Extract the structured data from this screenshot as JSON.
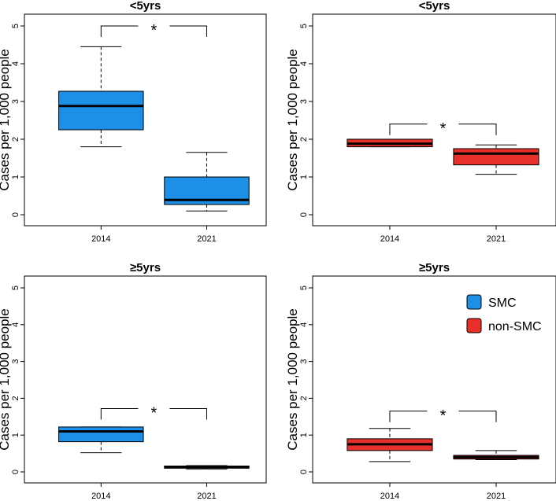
{
  "chart_data": [
    {
      "type": "box",
      "title": "<5yrs",
      "ylabel": "Cases per 1,000 people",
      "ylim": [
        0,
        5
      ],
      "yticks": [
        0,
        1,
        2,
        3,
        4,
        5
      ],
      "categories": [
        "2014",
        "2021"
      ],
      "group": "SMC",
      "color": "#1E8FE6",
      "boxes": [
        {
          "x": "2014",
          "whisker_low": 1.8,
          "q1": 2.25,
          "median": 2.88,
          "q3": 3.27,
          "whisker_high": 4.45
        },
        {
          "x": "2021",
          "whisker_low": 0.1,
          "q1": 0.27,
          "median": 0.39,
          "q3": 1.0,
          "whisker_high": 1.65
        }
      ],
      "significance": "*",
      "sig_y": 5.0
    },
    {
      "type": "box",
      "title": "<5yrs",
      "ylabel": "Cases per 1,000 people",
      "ylim": [
        0,
        5
      ],
      "yticks": [
        0,
        1,
        2,
        3,
        4,
        5
      ],
      "categories": [
        "2014",
        "2021"
      ],
      "group": "non-SMC",
      "color": "#E8302A",
      "boxes": [
        {
          "x": "2014",
          "whisker_low": 1.8,
          "q1": 1.8,
          "median": 1.88,
          "q3": 2.0,
          "whisker_high": 2.0
        },
        {
          "x": "2021",
          "whisker_low": 1.07,
          "q1": 1.32,
          "median": 1.62,
          "q3": 1.75,
          "whisker_high": 1.85
        }
      ],
      "significance": "*",
      "sig_y": 2.4
    },
    {
      "type": "box",
      "title": "≥5yrs",
      "ylabel": "Cases per 1,000 people",
      "ylim": [
        0,
        5
      ],
      "yticks": [
        0,
        1,
        2,
        3,
        4,
        5
      ],
      "categories": [
        "2014",
        "2021"
      ],
      "group": "SMC",
      "color": "#1E8FE6",
      "boxes": [
        {
          "x": "2014",
          "whisker_low": 0.52,
          "q1": 0.82,
          "median": 1.1,
          "q3": 1.22,
          "whisker_high": 1.22
        },
        {
          "x": "2021",
          "whisker_low": 0.08,
          "q1": 0.1,
          "median": 0.13,
          "q3": 0.16,
          "whisker_high": 0.17
        }
      ],
      "significance": "*",
      "sig_y": 1.72
    },
    {
      "type": "box",
      "title": "≥5yrs",
      "ylabel": "Cases per 1,000 people",
      "ylim": [
        0,
        5
      ],
      "yticks": [
        0,
        1,
        2,
        3,
        4,
        5
      ],
      "categories": [
        "2014",
        "2021"
      ],
      "group": "non-SMC",
      "color": "#E8302A",
      "boxes": [
        {
          "x": "2014",
          "whisker_low": 0.28,
          "q1": 0.58,
          "median": 0.75,
          "q3": 0.9,
          "whisker_high": 1.18
        },
        {
          "x": "2021",
          "whisker_low": 0.33,
          "q1": 0.35,
          "median": 0.4,
          "q3": 0.45,
          "whisker_high": 0.58
        }
      ],
      "significance": "*",
      "sig_y": 1.65
    }
  ],
  "legend": {
    "placement": "top-right of bottom-right panel",
    "entries": [
      {
        "label": "SMC",
        "color": "#1E8FE6"
      },
      {
        "label": "non-SMC",
        "color": "#E8302A"
      }
    ]
  }
}
